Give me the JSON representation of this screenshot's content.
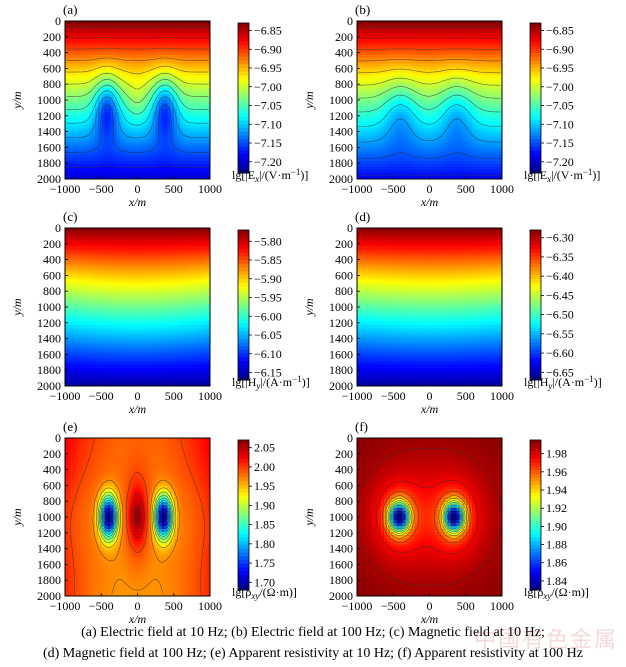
{
  "watermark": "中国有色金属",
  "captions": {
    "line1": "(a) Electric field at 10 Hz; (b) Electric field at 100 Hz; (c) Magnetic field at 10 Hz;",
    "line2": "(d) Magnetic field at 100 Hz; (e) Apparent resistivity at 10 Hz; (f) Apparent resistivity at 100 Hz"
  },
  "chart_data": [
    {
      "type": "heatmap",
      "panel_label": "(a)",
      "xlabel": "x/m",
      "ylabel": "y/m",
      "xlim": [
        -1000,
        1000
      ],
      "ylim": [
        0,
        2000
      ],
      "xticks": [
        "−1000",
        "−500",
        "0",
        "500",
        "1000"
      ],
      "yticks": [
        "0",
        "200",
        "400",
        "600",
        "800",
        "1000",
        "1200",
        "1400",
        "1600",
        "1800",
        "2000"
      ],
      "colorbar_label_main": "lg[|E",
      "colorbar_label_sub": "x",
      "colorbar_label_tail": "|/(V·m",
      "colorbar_label_sup": "−1",
      "colorbar_label_end": ")]",
      "colorbar_ticks": [
        "−6.85",
        "−6.90",
        "−6.95",
        "−7.00",
        "−7.05",
        "−7.10",
        "−7.15",
        "−7.20"
      ],
      "colorbar_values": [
        -6.85,
        -6.9,
        -6.95,
        -7.0,
        -7.05,
        -7.1,
        -7.15,
        -7.2
      ],
      "value_range": [
        -7.23,
        -6.83
      ],
      "colorbar_direction": "top-high",
      "pattern": "depth-decay with two conductive anomalies near x=±400 m, y≈1100 m",
      "contours": true
    },
    {
      "type": "heatmap",
      "panel_label": "(b)",
      "xlabel": "x/m",
      "ylabel": "y/m",
      "xlim": [
        -1000,
        1000
      ],
      "ylim": [
        0,
        2000
      ],
      "xticks": [
        "−1000",
        "−500",
        "0",
        "500",
        "1000"
      ],
      "yticks": [
        "0",
        "200",
        "400",
        "600",
        "800",
        "1000",
        "1200",
        "1400",
        "1600",
        "1800",
        "2000"
      ],
      "colorbar_label_main": "lg[|E",
      "colorbar_label_sub": "x",
      "colorbar_label_tail": "|/(V·m",
      "colorbar_label_sup": "−1",
      "colorbar_label_end": ")]",
      "colorbar_ticks": [
        "−6.85",
        "−6.90",
        "−6.95",
        "−7.00",
        "−7.05",
        "−7.10",
        "−7.15",
        "−7.20"
      ],
      "colorbar_values": [
        -6.85,
        -6.9,
        -6.95,
        -7.0,
        -7.05,
        -7.1,
        -7.15,
        -7.2
      ],
      "value_range": [
        -7.23,
        -6.83
      ],
      "colorbar_direction": "top-high",
      "pattern": "depth-decay with weaker anomalies near x=±400 m",
      "contours": true
    },
    {
      "type": "heatmap",
      "panel_label": "(c)",
      "xlabel": "x/m",
      "ylabel": "y/m",
      "xlim": [
        -1000,
        1000
      ],
      "ylim": [
        0,
        2000
      ],
      "xticks": [
        "−1000",
        "−500",
        "0",
        "500",
        "1000"
      ],
      "yticks": [
        "0",
        "200",
        "400",
        "600",
        "800",
        "1000",
        "1200",
        "1400",
        "1600",
        "1800",
        "2000"
      ],
      "colorbar_label_main": "lg[|H",
      "colorbar_label_sub": "y",
      "colorbar_label_tail": "|/(A·m",
      "colorbar_label_sup": "−1",
      "colorbar_label_end": ")]",
      "colorbar_ticks": [
        "−5.80",
        "−5.85",
        "−5.90",
        "−5.95",
        "−6.00",
        "−6.05",
        "−6.10",
        "−6.15"
      ],
      "colorbar_values": [
        -5.8,
        -5.85,
        -5.9,
        -5.95,
        -6.0,
        -6.05,
        -6.1,
        -6.15
      ],
      "value_range": [
        -6.17,
        -5.77
      ],
      "colorbar_direction": "top-high",
      "pattern": "smooth depth-decay, slight curvature",
      "contours": false
    },
    {
      "type": "heatmap",
      "panel_label": "(d)",
      "xlabel": "x/m",
      "ylabel": "y/m",
      "xlim": [
        -1000,
        1000
      ],
      "ylim": [
        0,
        2000
      ],
      "xticks": [
        "−1000",
        "−500",
        "0",
        "500",
        "1000"
      ],
      "yticks": [
        "0",
        "200",
        "400",
        "600",
        "800",
        "1000",
        "1200",
        "1400",
        "1600",
        "1800",
        "2000"
      ],
      "colorbar_label_main": "lg[|H",
      "colorbar_label_sub": "y",
      "colorbar_label_tail": "|/(A·m",
      "colorbar_label_sup": "−1",
      "colorbar_label_end": ")]",
      "colorbar_ticks": [
        "−6.30",
        "−6.35",
        "−6.40",
        "−6.45",
        "−6.50",
        "−6.55",
        "−6.60",
        "−6.65"
      ],
      "colorbar_values": [
        -6.3,
        -6.35,
        -6.4,
        -6.45,
        -6.5,
        -6.55,
        -6.6,
        -6.65
      ],
      "value_range": [
        -6.67,
        -6.28
      ],
      "colorbar_direction": "top-high",
      "pattern": "smooth depth-decay",
      "contours": false
    },
    {
      "type": "heatmap",
      "panel_label": "(e)",
      "xlabel": "x/m",
      "ylabel": "y/m",
      "xlim": [
        -1000,
        1000
      ],
      "ylim": [
        0,
        2000
      ],
      "xticks": [
        "−1000",
        "−500",
        "0",
        "500",
        "1000"
      ],
      "yticks": [
        "0",
        "200",
        "400",
        "600",
        "800",
        "1000",
        "1200",
        "1400",
        "1600",
        "1800",
        "2000"
      ],
      "colorbar_label_main": "lg[ρ",
      "colorbar_label_sub": "xy",
      "colorbar_label_tail": "/(Ω·m)]",
      "colorbar_label_sup": "",
      "colorbar_label_end": "",
      "colorbar_ticks": [
        "2.05",
        "2.00",
        "1.95",
        "1.90",
        "1.85",
        "1.80",
        "1.75",
        "1.70"
      ],
      "colorbar_values": [
        2.05,
        2.0,
        1.95,
        1.9,
        1.85,
        1.8,
        1.75,
        1.7
      ],
      "value_range": [
        1.68,
        2.07
      ],
      "colorbar_direction": "top-high",
      "pattern": "two low-resistivity anomalies centered near x=±400 m, y=1000 m",
      "contours": true
    },
    {
      "type": "heatmap",
      "panel_label": "(f)",
      "xlabel": "x/m",
      "ylabel": "y/m",
      "xlim": [
        -1000,
        1000
      ],
      "ylim": [
        0,
        2000
      ],
      "xticks": [
        "−1000",
        "−500",
        "0",
        "500",
        "1000"
      ],
      "yticks": [
        "0",
        "200",
        "400",
        "600",
        "800",
        "1000",
        "1200",
        "1400",
        "1600",
        "1800",
        "2000"
      ],
      "colorbar_label_main": "lg[ρ",
      "colorbar_label_sub": "xy",
      "colorbar_label_tail": "/(Ω·m)]",
      "colorbar_label_sup": "",
      "colorbar_label_end": "",
      "colorbar_ticks": [
        "1.98",
        "1.96",
        "1.94",
        "1.92",
        "1.90",
        "1.88",
        "1.86",
        "1.84"
      ],
      "colorbar_values": [
        1.98,
        1.96,
        1.94,
        1.92,
        1.9,
        1.88,
        1.86,
        1.84
      ],
      "value_range": [
        1.83,
        1.995
      ],
      "colorbar_direction": "top-high",
      "pattern": "two low-resistivity anomalies centered near x=±400 m, y=1000 m",
      "contours": true
    }
  ]
}
